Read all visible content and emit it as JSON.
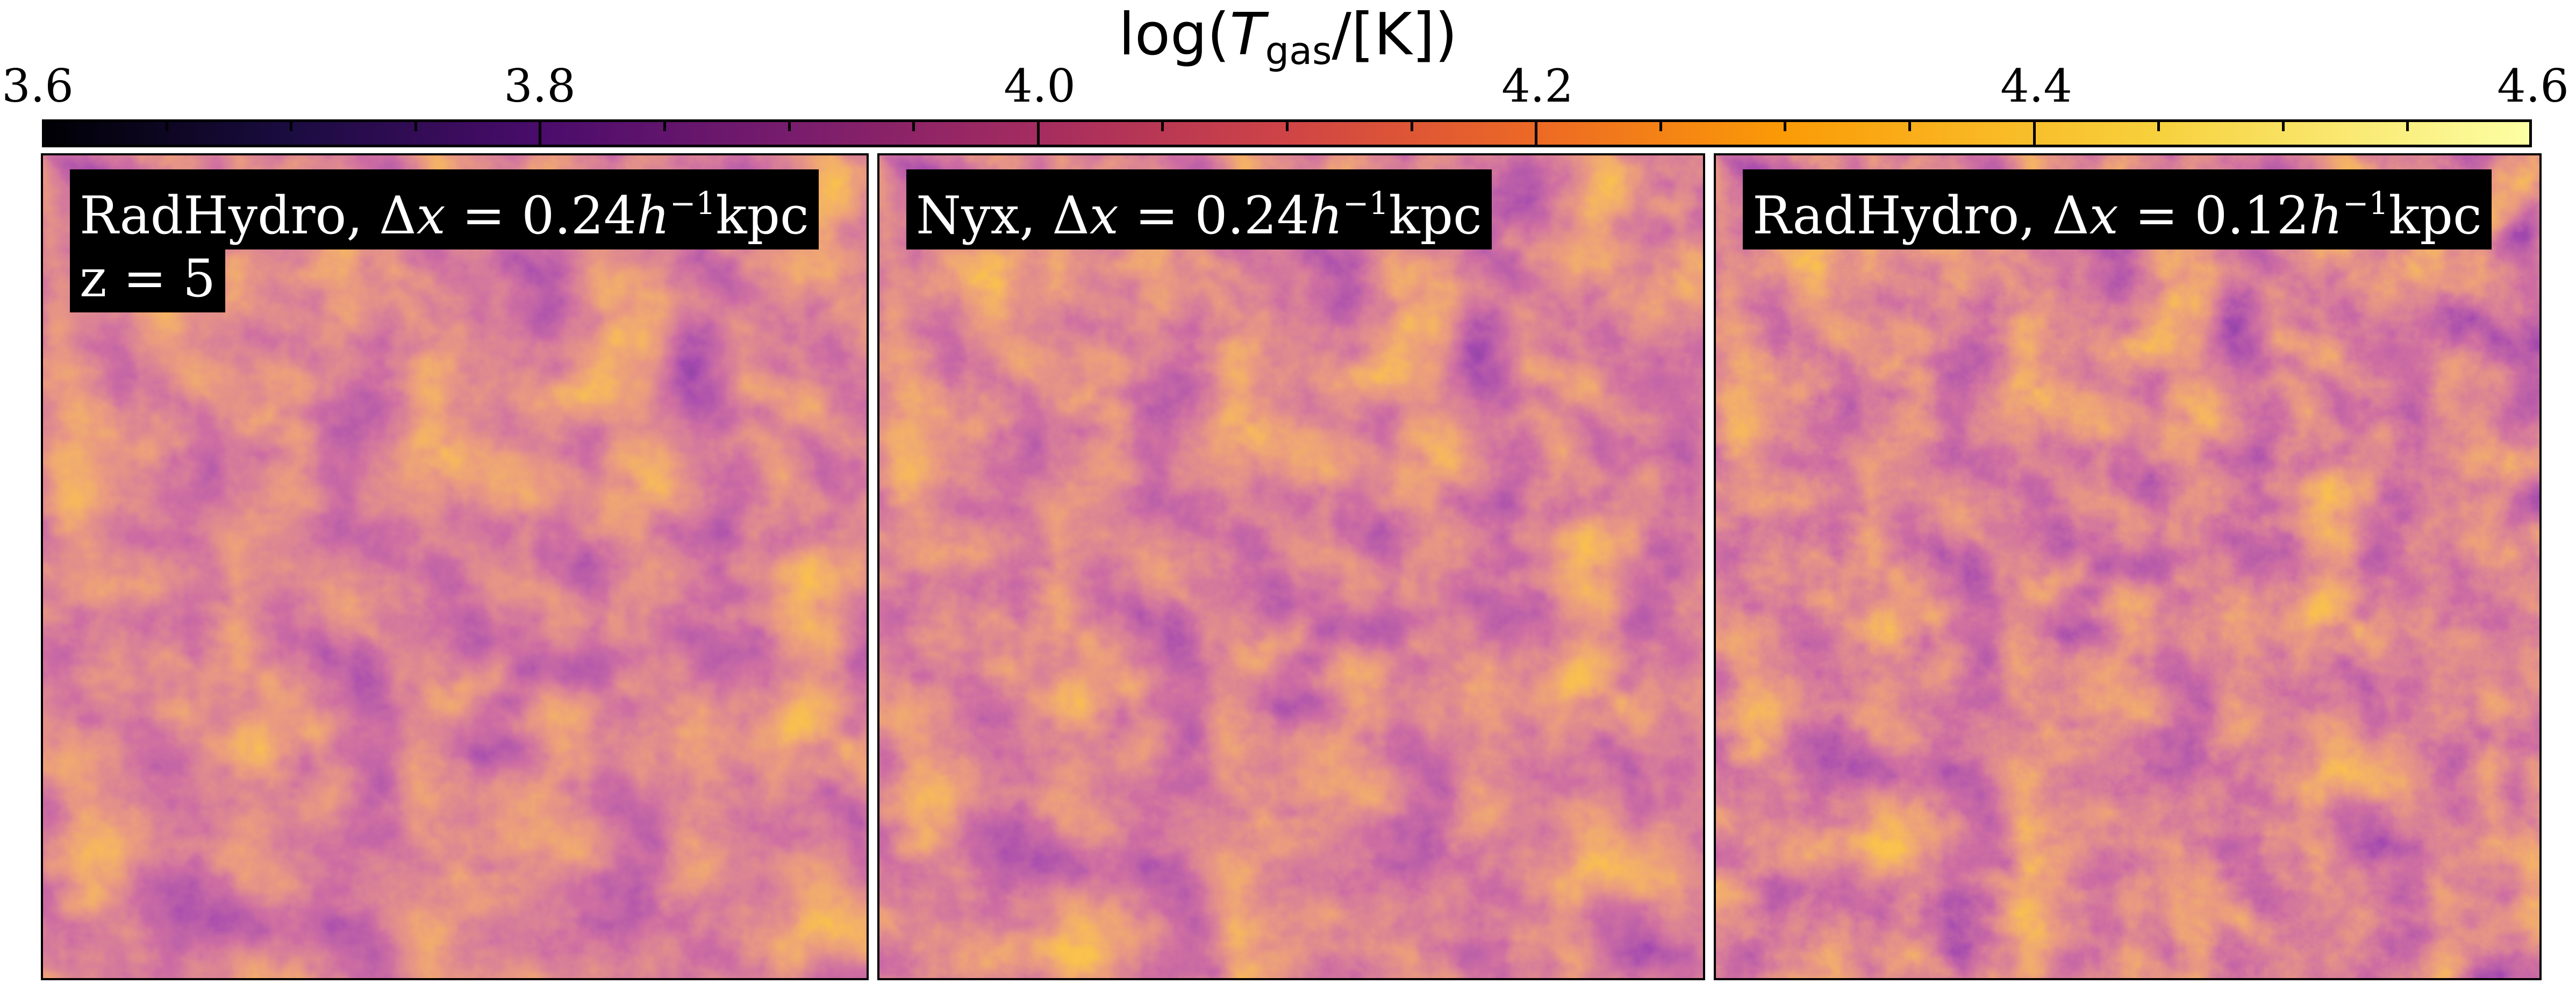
{
  "colorbar": {
    "title": "log(T_gas/[K])",
    "title_prefix": "log(",
    "title_T": "T",
    "title_sub": "gas",
    "title_suffix": "/[K])",
    "tick_labels": [
      "3.6",
      "3.8",
      "4.0",
      "4.2",
      "4.4",
      "4.6"
    ],
    "range": [
      3.6,
      4.6
    ],
    "colormap": "inferno"
  },
  "panels": [
    {
      "code": "RadHydro",
      "dx": "0.24",
      "label_text": "RadHydro, Δx = 0.24h⁻¹kpc",
      "redshift": "z = 5"
    },
    {
      "code": "Nyx",
      "dx": "0.24",
      "label_text": "Nyx, Δx = 0.24h⁻¹kpc"
    },
    {
      "code": "RadHydro",
      "dx": "0.12",
      "label_text": "RadHydro, Δx = 0.12h⁻¹kpc"
    }
  ],
  "label_parts": {
    "delta": "Δ",
    "x": "x",
    "eq": " = ",
    "h": "h",
    "exp": "−1",
    "unit": "kpc"
  }
}
